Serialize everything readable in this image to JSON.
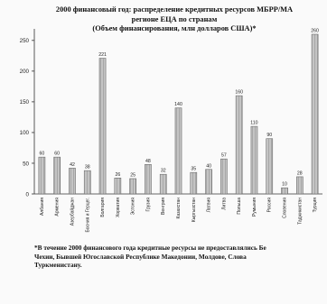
{
  "title": {
    "line1": "2000 финансовый год: распределение кредитных ресурсов МБРР/МА",
    "line2": "регионе ЕЦА по странам",
    "line3": "(Объем финансирования, млн долларов США)*"
  },
  "footnote": {
    "line1": "*В течение 2000 финансового года кредитные ресурсы не предоставлялись Бе",
    "line2": "Чехии, Бывшей Югославской Республике Македонии, Молдове, Слова",
    "line3": "Туркменистану."
  },
  "colors": {
    "bar_fill": "#bdbdbd",
    "bar_hatch": "#7a7a7a",
    "axis": "#333333",
    "page": "#fafafa"
  },
  "chart_data": {
    "type": "bar",
    "categories": [
      "Албания",
      "Армения",
      "Азербайджан",
      "Босния и Герцег.",
      "Болгария",
      "Хорватия",
      "Эстония",
      "Грузия",
      "Венгрия",
      "Казахстан",
      "Кыргызстан",
      "Латвия",
      "Литва",
      "Польша",
      "Румыния",
      "Россия",
      "Словения",
      "Таджикистан",
      "Турция"
    ],
    "values": [
      60,
      60,
      42,
      38,
      221,
      26,
      25,
      48,
      32,
      140,
      35,
      40,
      57,
      160,
      110,
      90,
      10,
      28,
      260
    ],
    "data_labels": [
      "60",
      "60",
      "42",
      "38",
      "221",
      "26",
      "25",
      "48",
      "32",
      "140",
      "35",
      "40",
      "57",
      "160",
      "110",
      "90",
      "10",
      "28",
      "260"
    ],
    "y_ticks": [
      "0",
      "50",
      "100",
      "150",
      "200",
      "250"
    ],
    "ylim": [
      0,
      260
    ],
    "grid": false,
    "legend": "none",
    "xlabel": "",
    "ylabel": ""
  }
}
